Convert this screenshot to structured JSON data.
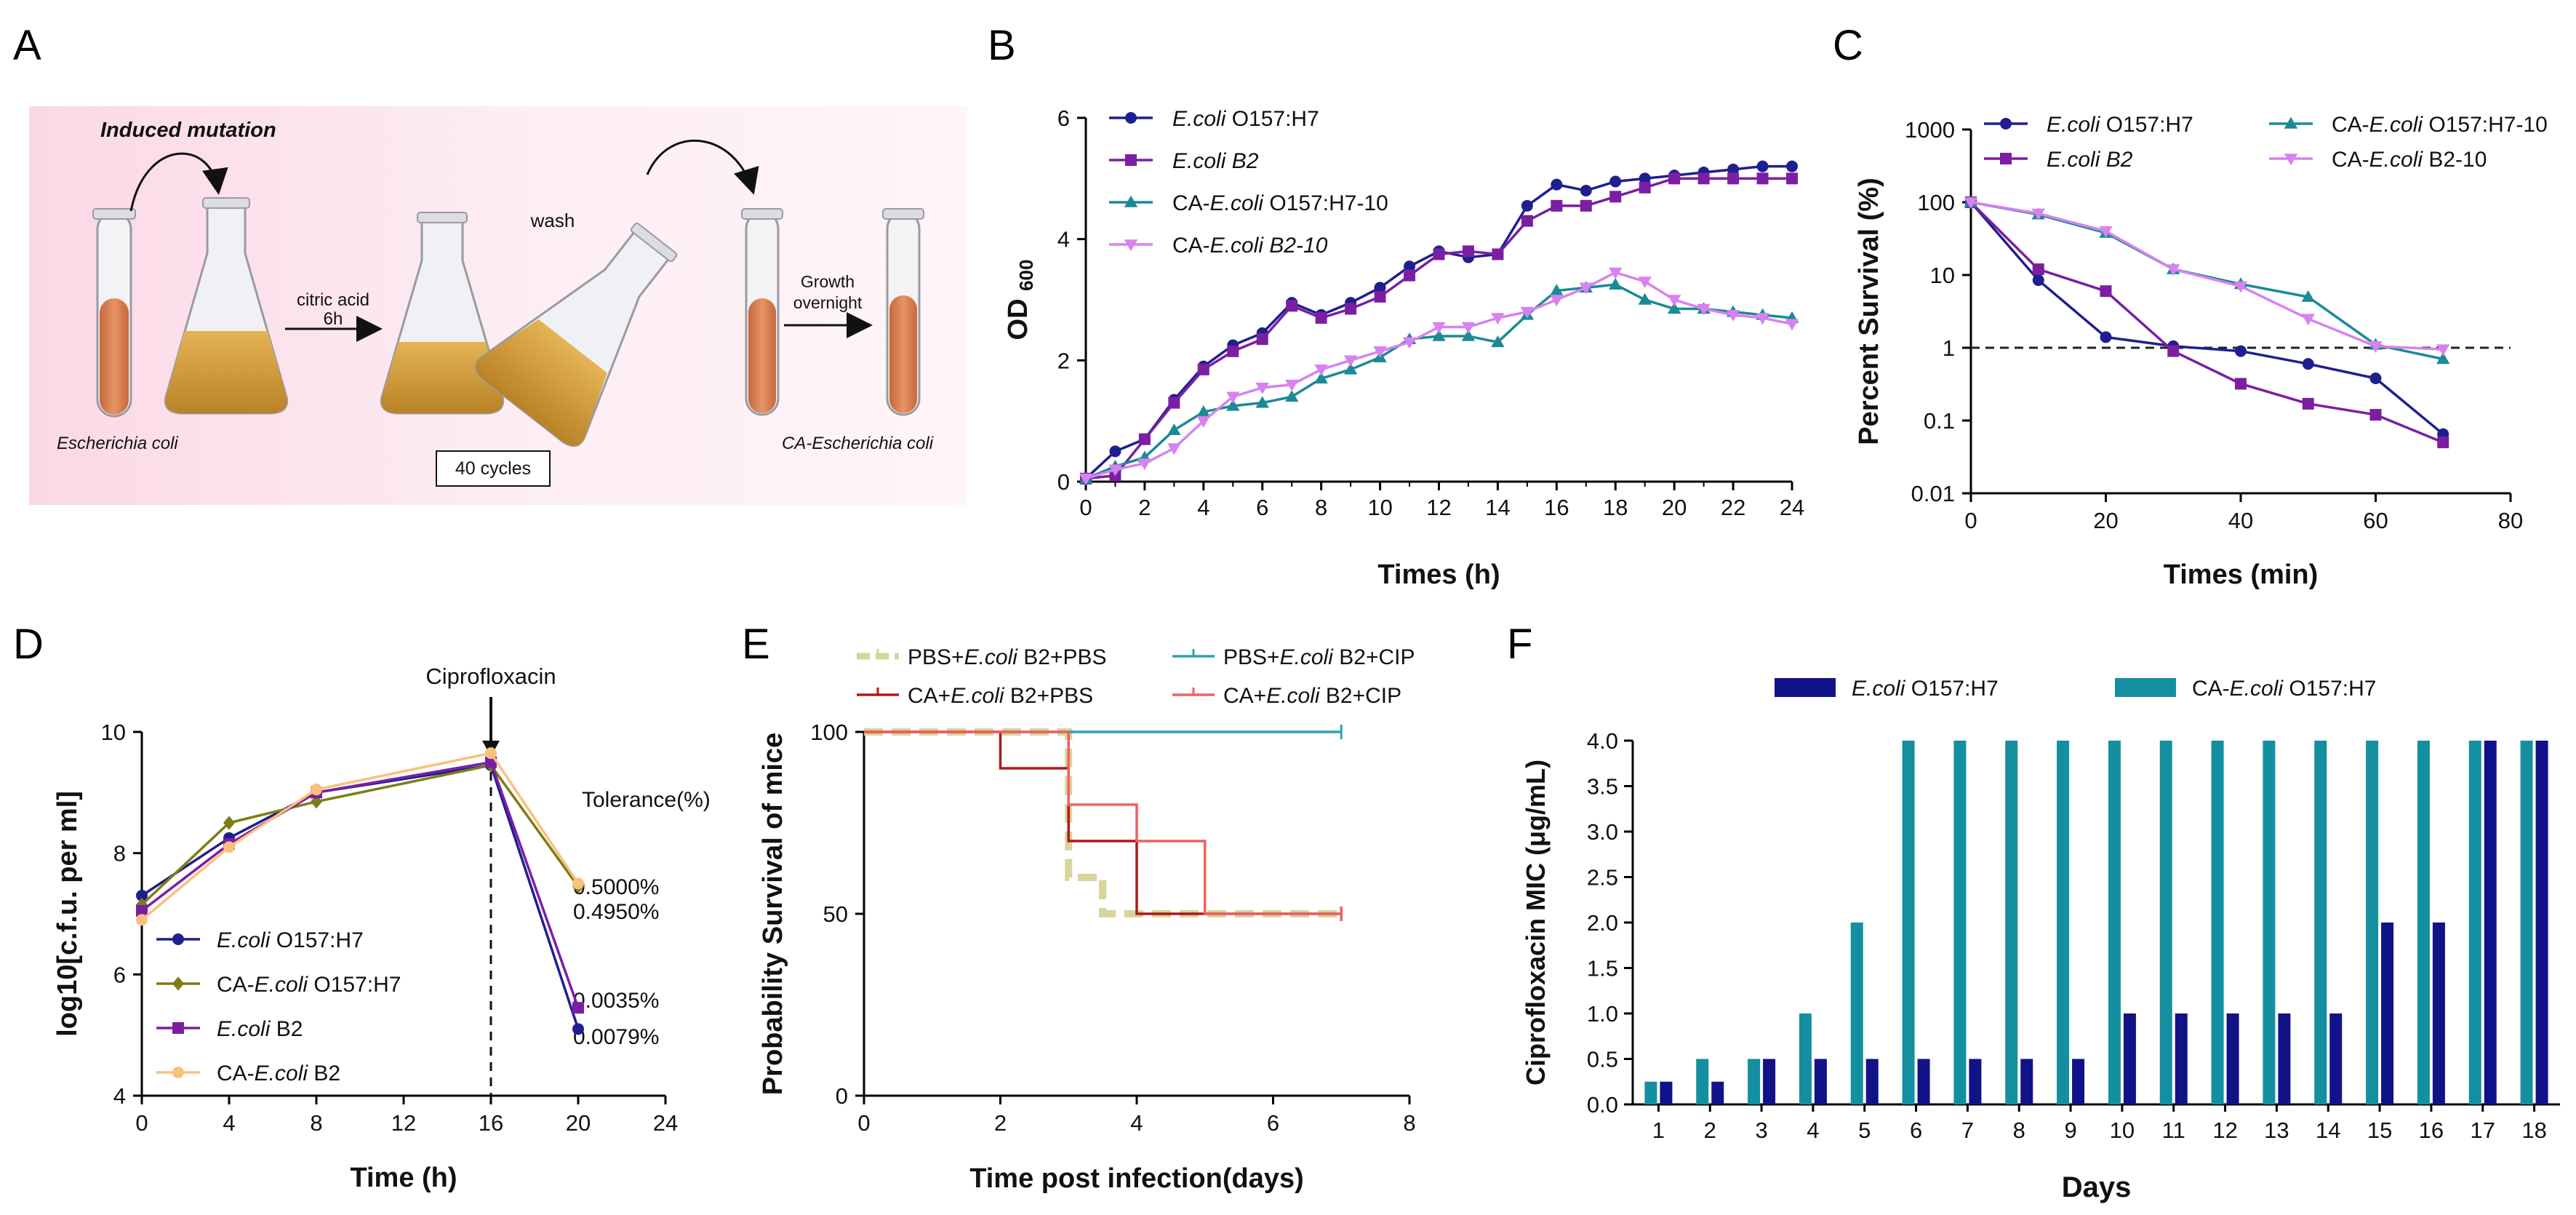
{
  "panel_letters": {
    "A": "A",
    "B": "B",
    "C": "C",
    "D": "D",
    "E": "E",
    "F": "F"
  },
  "colors": {
    "navy": "#1f1f8f",
    "purple": "#7b1fa2",
    "teal": "#1b8a96",
    "violet": "#d782ef",
    "olive": "#7d7d16",
    "peach": "#f9c07e",
    "khaki": "#d7d49c",
    "darkred": "#b01818",
    "lightred": "#f06060",
    "lightteal": "#2ba3b3",
    "barNavy": "#121288",
    "barTeal": "#148fa0"
  },
  "schematic": {
    "title": "Induced mutation",
    "citric_acid": "citric acid",
    "time": "6h",
    "wash": "wash",
    "growth": "Growth",
    "overnight": "overnight",
    "cycles": "40 cycles",
    "start_organism": "Escherichia coli",
    "end_organism": "CA-Escherichia coli"
  },
  "chart_data": [
    {
      "panel": "B",
      "type": "line",
      "xlabel": "Times (h)",
      "ylabel_main": "OD",
      "ylabel_sub": "600",
      "xlim": [
        0,
        24
      ],
      "ylim": [
        0,
        6
      ],
      "xticks": [
        0,
        2,
        4,
        6,
        8,
        10,
        12,
        14,
        16,
        18,
        20,
        22,
        24
      ],
      "yticks": [
        0,
        2,
        4,
        6
      ],
      "x": [
        0,
        1,
        2,
        3,
        4,
        5,
        6,
        7,
        8,
        9,
        10,
        11,
        12,
        13,
        14,
        15,
        16,
        17,
        18,
        19,
        20,
        21,
        22,
        23,
        24
      ],
      "series": [
        {
          "legend_pre": "E.coli",
          "legend_post": " O157:H7",
          "color_key": "navy",
          "marker": "circle",
          "values": [
            0.05,
            0.5,
            0.7,
            1.35,
            1.9,
            2.25,
            2.45,
            2.95,
            2.75,
            2.95,
            3.2,
            3.55,
            3.8,
            3.7,
            3.75,
            4.55,
            4.9,
            4.8,
            4.95,
            5.0,
            5.05,
            5.1,
            5.15,
            5.2,
            5.2
          ]
        },
        {
          "legend_pre": "E.coli B2",
          "legend_post": "",
          "color_key": "purple",
          "marker": "square",
          "values": [
            0.05,
            0.1,
            0.7,
            1.3,
            1.85,
            2.15,
            2.35,
            2.9,
            2.7,
            2.85,
            3.05,
            3.4,
            3.75,
            3.8,
            3.75,
            4.3,
            4.55,
            4.55,
            4.7,
            4.85,
            5.0,
            5.0,
            5.0,
            5.0,
            5.0
          ]
        },
        {
          "legend_pre": "CA-",
          "legend_mid": "E.coli",
          "legend_post": " O157:H7-10",
          "color_key": "teal",
          "marker": "triangle",
          "values": [
            0.05,
            0.25,
            0.4,
            0.85,
            1.15,
            1.25,
            1.3,
            1.4,
            1.7,
            1.85,
            2.05,
            2.35,
            2.4,
            2.4,
            2.3,
            2.75,
            3.15,
            3.2,
            3.25,
            3.0,
            2.85,
            2.85,
            2.8,
            2.75,
            2.7
          ]
        },
        {
          "legend_pre": "CA-",
          "legend_mid": "E.coli B2-10",
          "legend_post": "",
          "color_key": "violet",
          "marker": "triangle-down",
          "values": [
            0.05,
            0.2,
            0.3,
            0.55,
            1.0,
            1.4,
            1.55,
            1.6,
            1.85,
            2.0,
            2.15,
            2.3,
            2.55,
            2.55,
            2.7,
            2.8,
            3.0,
            3.2,
            3.45,
            3.3,
            3.0,
            2.85,
            2.75,
            2.7,
            2.6
          ]
        }
      ]
    },
    {
      "panel": "C",
      "type": "line",
      "xlabel": "Times (min)",
      "ylabel": "Percent Survival (%)",
      "xlim": [
        0,
        80
      ],
      "ylim_log": [
        0.01,
        1000
      ],
      "yscale": "log",
      "xticks": [
        0,
        20,
        40,
        60,
        80
      ],
      "ytick_labels": [
        "1000",
        "100",
        "10",
        "1",
        "0.1",
        "0.01"
      ],
      "ytick_values": [
        1000,
        100,
        10,
        1,
        0.1,
        0.01
      ],
      "reference_line": 1,
      "x": [
        0,
        10,
        20,
        30,
        40,
        50,
        60,
        70
      ],
      "series": [
        {
          "legend_pre": "E.coli",
          "legend_post": " O157:H7",
          "color_key": "navy",
          "marker": "circle",
          "values": [
            100,
            8.5,
            1.4,
            1.05,
            0.9,
            0.6,
            0.38,
            0.065
          ]
        },
        {
          "legend_pre": "E.coli B2",
          "legend_post": "",
          "color_key": "purple",
          "marker": "square",
          "values": [
            100,
            12,
            6,
            0.9,
            0.32,
            0.17,
            0.12,
            0.05
          ]
        },
        {
          "legend_pre": "CA-",
          "legend_mid": "E.coli",
          "legend_post": " O157:H7-10",
          "color_key": "teal",
          "marker": "triangle",
          "values": [
            100,
            68,
            38,
            12,
            7.5,
            5,
            1.1,
            0.7
          ]
        },
        {
          "legend_pre": "CA-",
          "legend_mid": "E.coli",
          "legend_post": " B2-10",
          "color_key": "violet",
          "marker": "triangle-down",
          "values": [
            100,
            70,
            40,
            12,
            7,
            2.5,
            1.05,
            0.95
          ]
        }
      ]
    },
    {
      "panel": "D",
      "type": "line",
      "xlabel": "Time (h)",
      "ylabel": "log10[c.f.u. per ml]",
      "annotation": "Ciprofloxacin",
      "tolerance_title": "Tolerance(%)",
      "tolerance_values": [
        "0.5000%",
        "0.4950%",
        "0.0035%",
        "0.0079%"
      ],
      "xlim": [
        0,
        24
      ],
      "ylim": [
        4,
        10
      ],
      "xticks": [
        0,
        4,
        8,
        12,
        16,
        20,
        24
      ],
      "yticks": [
        4,
        6,
        8,
        10
      ],
      "x": [
        0,
        4,
        8,
        16,
        20
      ],
      "series": [
        {
          "legend_pre": "E.coli",
          "legend_post": " O157:H7",
          "color_key": "navy",
          "marker": "circle",
          "values": [
            7.3,
            8.25,
            9.0,
            9.45,
            5.1
          ]
        },
        {
          "legend_pre": "CA-",
          "legend_mid": "E.coli",
          "legend_post": " O157:H7",
          "color_key": "olive",
          "marker": "diamond",
          "values": [
            7.15,
            8.5,
            8.85,
            9.45,
            7.45
          ]
        },
        {
          "legend_pre": "E.coli",
          "legend_post": " B2",
          "color_key": "purple",
          "marker": "square",
          "values": [
            7.05,
            8.15,
            9.0,
            9.5,
            5.45
          ]
        },
        {
          "legend_pre": "CA-",
          "legend_mid": "E.coli",
          "legend_post": " B2",
          "color_key": "peach",
          "marker": "circle",
          "values": [
            6.9,
            8.1,
            9.05,
            9.65,
            7.5
          ]
        }
      ]
    },
    {
      "panel": "E",
      "type": "step",
      "xlabel": "Time post infection(days)",
      "ylabel": "Probability Survival of mice",
      "xlim": [
        0,
        8
      ],
      "ylim": [
        0,
        100
      ],
      "xticks": [
        0,
        2,
        4,
        6,
        8
      ],
      "yticks": [
        0,
        50,
        100
      ],
      "series": [
        {
          "legend_pre": "PBS+",
          "legend_mid": "E.coli",
          "legend_post": " B2+PBS",
          "color_key": "khaki",
          "style": "dashed",
          "steps": [
            [
              0,
              100
            ],
            [
              3,
              100
            ],
            [
              3,
              60
            ],
            [
              3.5,
              60
            ],
            [
              3.5,
              50
            ],
            [
              7,
              50
            ]
          ]
        },
        {
          "legend_pre": "PBS+",
          "legend_mid": "E.coli",
          "legend_post": " B2+CIP",
          "color_key": "lightteal",
          "style": "solid",
          "steps": [
            [
              0,
              100
            ],
            [
              7,
              100
            ]
          ]
        },
        {
          "legend_pre": "CA+",
          "legend_mid": "E.coli",
          "legend_post": " B2+PBS",
          "color_key": "darkred",
          "style": "solid",
          "steps": [
            [
              0,
              100
            ],
            [
              2,
              100
            ],
            [
              2,
              90
            ],
            [
              3,
              90
            ],
            [
              3,
              70
            ],
            [
              4,
              70
            ],
            [
              4,
              50
            ],
            [
              7,
              50
            ]
          ]
        },
        {
          "legend_pre": "CA+",
          "legend_mid": "E.coli",
          "legend_post": " B2+CIP",
          "color_key": "lightred",
          "style": "solid",
          "steps": [
            [
              0,
              100
            ],
            [
              3,
              100
            ],
            [
              3,
              80
            ],
            [
              4,
              80
            ],
            [
              4,
              70
            ],
            [
              5,
              70
            ],
            [
              5,
              50
            ],
            [
              7,
              50
            ]
          ]
        }
      ]
    },
    {
      "panel": "F",
      "type": "bar",
      "xlabel": "Days",
      "ylabel": "Ciprofloxacin  MIC (μg/mL)",
      "categories": [
        "1",
        "2",
        "3",
        "4",
        "5",
        "6",
        "7",
        "8",
        "9",
        "10",
        "11",
        "12",
        "13",
        "14",
        "15",
        "16",
        "17",
        "18"
      ],
      "ylim": [
        0,
        4
      ],
      "yticks": [
        "0.0",
        "0.5",
        "1.0",
        "1.5",
        "2.0",
        "2.5",
        "3.0",
        "3.5",
        "4.0"
      ],
      "series": [
        {
          "legend_pre": "CA-",
          "legend_mid": "E.coli",
          "legend_post": " O157:H7",
          "color_key": "barTeal",
          "values": [
            0.25,
            0.5,
            0.5,
            1,
            2,
            4,
            4,
            4,
            4,
            4,
            4,
            4,
            4,
            4,
            4,
            4,
            4,
            4
          ]
        },
        {
          "legend_pre": "E.coli",
          "legend_post": " O157:H7",
          "color_key": "barNavy",
          "values": [
            0.25,
            0.25,
            0.5,
            0.5,
            0.5,
            0.5,
            0.5,
            0.5,
            0.5,
            1,
            1,
            1,
            1,
            1,
            2,
            2,
            4,
            4
          ]
        }
      ]
    }
  ]
}
